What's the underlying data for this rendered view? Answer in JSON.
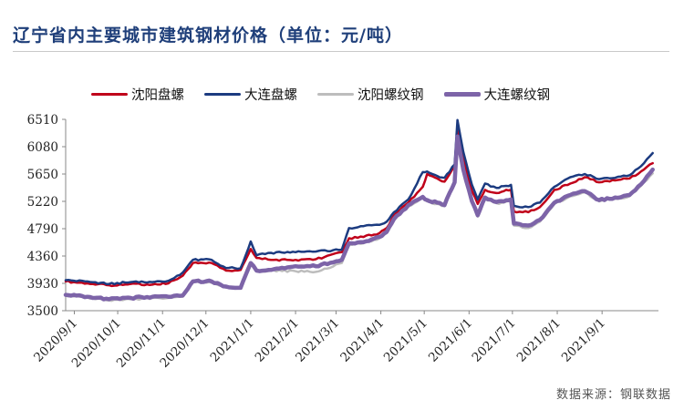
{
  "title": "辽宁省内主要城市建筑钢材价格（单位：元/吨）",
  "source": "数据来源：钢联数据",
  "chart_data": {
    "type": "line",
    "ylim": [
      3500,
      6510
    ],
    "yticks": [
      3500,
      3930,
      4360,
      4790,
      5220,
      5650,
      6080,
      6510
    ],
    "xlim": [
      "2020-08-26",
      "2021-10-10"
    ],
    "xticks": [
      "2020/9/1",
      "2020/10/1",
      "2020/11/1",
      "2020/12/1",
      "2021/1/1",
      "2021/2/1",
      "2021/3/1",
      "2021/4/1",
      "2021/5/1",
      "2021/6/1",
      "2021/7/1",
      "2021/8/1",
      "2021/9/1"
    ],
    "legend_position": "top",
    "grid": false,
    "series": [
      {
        "name": "沈阳盘螺",
        "color": "#c0001a",
        "points": [
          [
            "2020-08-26",
            3960
          ],
          [
            "2020-09-10",
            3930
          ],
          [
            "2020-09-25",
            3900
          ],
          [
            "2020-10-10",
            3920
          ],
          [
            "2020-10-25",
            3910
          ],
          [
            "2020-11-05",
            3930
          ],
          [
            "2020-11-15",
            4050
          ],
          [
            "2020-11-22",
            4250
          ],
          [
            "2020-12-05",
            4250
          ],
          [
            "2020-12-15",
            4130
          ],
          [
            "2020-12-25",
            4140
          ],
          [
            "2021-01-01",
            4470
          ],
          [
            "2021-01-05",
            4330
          ],
          [
            "2021-01-15",
            4300
          ],
          [
            "2021-02-01",
            4300
          ],
          [
            "2021-02-15",
            4310
          ],
          [
            "2021-03-05",
            4420
          ],
          [
            "2021-03-10",
            4640
          ],
          [
            "2021-03-20",
            4660
          ],
          [
            "2021-03-31",
            4720
          ],
          [
            "2021-04-05",
            4800
          ],
          [
            "2021-04-10",
            5000
          ],
          [
            "2021-04-20",
            5200
          ],
          [
            "2021-04-30",
            5450
          ],
          [
            "2021-05-03",
            5650
          ],
          [
            "2021-05-10",
            5580
          ],
          [
            "2021-05-15",
            5530
          ],
          [
            "2021-05-22",
            5760
          ],
          [
            "2021-05-24",
            6400
          ],
          [
            "2021-05-28",
            5900
          ],
          [
            "2021-06-03",
            5380
          ],
          [
            "2021-06-07",
            5180
          ],
          [
            "2021-06-12",
            5400
          ],
          [
            "2021-06-20",
            5350
          ],
          [
            "2021-06-25",
            5380
          ],
          [
            "2021-06-30",
            5400
          ],
          [
            "2021-07-02",
            5060
          ],
          [
            "2021-07-12",
            5050
          ],
          [
            "2021-07-20",
            5130
          ],
          [
            "2021-07-30",
            5400
          ],
          [
            "2021-08-10",
            5500
          ],
          [
            "2021-08-20",
            5600
          ],
          [
            "2021-08-30",
            5520
          ],
          [
            "2021-09-10",
            5550
          ],
          [
            "2021-09-20",
            5580
          ],
          [
            "2021-09-30",
            5720
          ],
          [
            "2021-10-06",
            5820
          ]
        ]
      },
      {
        "name": "大连盘螺",
        "color": "#1c3b80",
        "points": [
          [
            "2020-08-26",
            3980
          ],
          [
            "2020-09-10",
            3960
          ],
          [
            "2020-09-25",
            3920
          ],
          [
            "2020-10-10",
            3950
          ],
          [
            "2020-10-25",
            3950
          ],
          [
            "2020-11-05",
            3970
          ],
          [
            "2020-11-15",
            4100
          ],
          [
            "2020-11-22",
            4300
          ],
          [
            "2020-12-05",
            4300
          ],
          [
            "2020-12-15",
            4170
          ],
          [
            "2020-12-25",
            4170
          ],
          [
            "2021-01-01",
            4590
          ],
          [
            "2021-01-05",
            4370
          ],
          [
            "2021-01-15",
            4410
          ],
          [
            "2021-02-01",
            4420
          ],
          [
            "2021-02-15",
            4430
          ],
          [
            "2021-03-05",
            4460
          ],
          [
            "2021-03-10",
            4800
          ],
          [
            "2021-03-20",
            4830
          ],
          [
            "2021-03-31",
            4850
          ],
          [
            "2021-04-05",
            4900
          ],
          [
            "2021-04-10",
            5050
          ],
          [
            "2021-04-20",
            5250
          ],
          [
            "2021-04-30",
            5680
          ],
          [
            "2021-05-03",
            5690
          ],
          [
            "2021-05-10",
            5620
          ],
          [
            "2021-05-15",
            5590
          ],
          [
            "2021-05-22",
            5800
          ],
          [
            "2021-05-24",
            6500
          ],
          [
            "2021-05-28",
            6000
          ],
          [
            "2021-06-03",
            5480
          ],
          [
            "2021-06-07",
            5250
          ],
          [
            "2021-06-12",
            5500
          ],
          [
            "2021-06-20",
            5430
          ],
          [
            "2021-06-25",
            5460
          ],
          [
            "2021-06-30",
            5480
          ],
          [
            "2021-07-02",
            5150
          ],
          [
            "2021-07-12",
            5130
          ],
          [
            "2021-07-20",
            5200
          ],
          [
            "2021-07-30",
            5450
          ],
          [
            "2021-08-10",
            5600
          ],
          [
            "2021-08-20",
            5650
          ],
          [
            "2021-08-30",
            5570
          ],
          [
            "2021-09-10",
            5590
          ],
          [
            "2021-09-20",
            5630
          ],
          [
            "2021-09-30",
            5820
          ],
          [
            "2021-10-06",
            5980
          ]
        ]
      },
      {
        "name": "沈阳螺纹钢",
        "color": "#bdbdbd",
        "points": [
          [
            "2020-08-26",
            3740
          ],
          [
            "2020-09-10",
            3710
          ],
          [
            "2020-09-25",
            3660
          ],
          [
            "2020-10-10",
            3680
          ],
          [
            "2020-10-25",
            3700
          ],
          [
            "2020-11-05",
            3700
          ],
          [
            "2020-11-15",
            3720
          ],
          [
            "2020-11-22",
            3950
          ],
          [
            "2020-12-05",
            3940
          ],
          [
            "2020-12-15",
            3860
          ],
          [
            "2020-12-25",
            3850
          ],
          [
            "2021-01-01",
            4230
          ],
          [
            "2021-01-05",
            4120
          ],
          [
            "2021-01-15",
            4130
          ],
          [
            "2021-02-01",
            4120
          ],
          [
            "2021-02-15",
            4110
          ],
          [
            "2021-03-05",
            4250
          ],
          [
            "2021-03-10",
            4540
          ],
          [
            "2021-03-20",
            4560
          ],
          [
            "2021-03-31",
            4640
          ],
          [
            "2021-04-05",
            4720
          ],
          [
            "2021-04-10",
            4920
          ],
          [
            "2021-04-20",
            5140
          ],
          [
            "2021-04-30",
            5270
          ],
          [
            "2021-05-03",
            5220
          ],
          [
            "2021-05-10",
            5180
          ],
          [
            "2021-05-15",
            5150
          ],
          [
            "2021-05-22",
            5500
          ],
          [
            "2021-05-24",
            6200
          ],
          [
            "2021-05-28",
            5700
          ],
          [
            "2021-06-03",
            5200
          ],
          [
            "2021-06-07",
            4980
          ],
          [
            "2021-06-12",
            5260
          ],
          [
            "2021-06-20",
            5190
          ],
          [
            "2021-06-25",
            5200
          ],
          [
            "2021-06-30",
            5230
          ],
          [
            "2021-07-02",
            4840
          ],
          [
            "2021-07-12",
            4800
          ],
          [
            "2021-07-20",
            4900
          ],
          [
            "2021-07-30",
            5180
          ],
          [
            "2021-08-10",
            5300
          ],
          [
            "2021-08-20",
            5360
          ],
          [
            "2021-08-30",
            5220
          ],
          [
            "2021-09-10",
            5260
          ],
          [
            "2021-09-20",
            5300
          ],
          [
            "2021-09-30",
            5520
          ],
          [
            "2021-10-06",
            5660
          ]
        ]
      },
      {
        "name": "大连螺纹钢",
        "color": "#7d64a8",
        "points": [
          [
            "2020-08-26",
            3750
          ],
          [
            "2020-09-10",
            3720
          ],
          [
            "2020-09-25",
            3680
          ],
          [
            "2020-10-10",
            3700
          ],
          [
            "2020-10-25",
            3720
          ],
          [
            "2020-11-05",
            3720
          ],
          [
            "2020-11-15",
            3740
          ],
          [
            "2020-11-22",
            3960
          ],
          [
            "2020-12-05",
            3960
          ],
          [
            "2020-12-15",
            3880
          ],
          [
            "2020-12-25",
            3860
          ],
          [
            "2021-01-01",
            4250
          ],
          [
            "2021-01-05",
            4130
          ],
          [
            "2021-01-15",
            4140
          ],
          [
            "2021-02-01",
            4200
          ],
          [
            "2021-02-15",
            4200
          ],
          [
            "2021-03-05",
            4300
          ],
          [
            "2021-03-10",
            4560
          ],
          [
            "2021-03-20",
            4580
          ],
          [
            "2021-03-31",
            4660
          ],
          [
            "2021-04-05",
            4740
          ],
          [
            "2021-04-10",
            4940
          ],
          [
            "2021-04-20",
            5160
          ],
          [
            "2021-04-30",
            5290
          ],
          [
            "2021-05-03",
            5240
          ],
          [
            "2021-05-10",
            5200
          ],
          [
            "2021-05-15",
            5160
          ],
          [
            "2021-05-22",
            5520
          ],
          [
            "2021-05-24",
            6240
          ],
          [
            "2021-05-28",
            5720
          ],
          [
            "2021-06-03",
            5220
          ],
          [
            "2021-06-07",
            5000
          ],
          [
            "2021-06-12",
            5280
          ],
          [
            "2021-06-20",
            5210
          ],
          [
            "2021-06-25",
            5220
          ],
          [
            "2021-06-30",
            5250
          ],
          [
            "2021-07-02",
            4870
          ],
          [
            "2021-07-12",
            4840
          ],
          [
            "2021-07-20",
            4930
          ],
          [
            "2021-07-30",
            5200
          ],
          [
            "2021-08-10",
            5320
          ],
          [
            "2021-08-20",
            5380
          ],
          [
            "2021-08-30",
            5240
          ],
          [
            "2021-09-10",
            5280
          ],
          [
            "2021-09-20",
            5320
          ],
          [
            "2021-09-30",
            5540
          ],
          [
            "2021-10-06",
            5720
          ]
        ]
      }
    ]
  }
}
